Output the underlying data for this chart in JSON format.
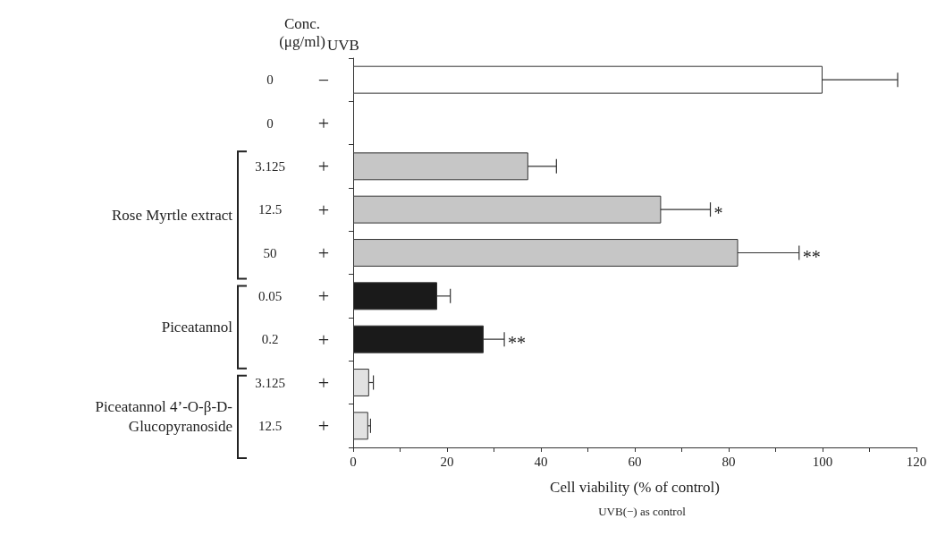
{
  "chart_data": {
    "type": "bar",
    "orientation": "horizontal",
    "xlabel": "Cell viability (% of control)",
    "categories": [
      "0 −",
      "0 +",
      "3.125 +",
      "12.5 +",
      "50 +",
      "0.05 +",
      "0.2 +",
      "3.125 +",
      "12.5 +"
    ],
    "values": [
      100,
      0,
      37.3,
      65.6,
      82,
      17.9,
      27.8,
      3.4,
      3.2
    ],
    "errors": [
      16,
      null,
      6,
      10.5,
      13,
      2.8,
      4.4,
      0.9,
      0.5
    ],
    "colors": [
      "#ffffff",
      "#ffffff",
      "#c6c6c6",
      "#c6c6c6",
      "#c6c6c6",
      "#1a1a1a",
      "#1a1a1a",
      "#e2e2e2",
      "#e2e2e2"
    ],
    "xlim": [
      0,
      120
    ],
    "xticks": [
      0,
      {
        "value": 10,
        "label": null
      },
      20,
      {
        "value": 30,
        "label": null
      },
      40,
      {
        "value": 50,
        "label": null
      },
      60,
      {
        "value": 70,
        "label": null
      },
      80,
      {
        "value": 90,
        "label": null
      },
      100,
      {
        "value": 110,
        "label": null
      },
      120
    ],
    "grid": false,
    "annotations": [
      "Conc.\n(μg/ml)",
      "UVB",
      "Rose Myrtle extract",
      "Piceatannol",
      "Piceatannol 4’-O-β-D-\nGlucopyranoside",
      {
        "text": "*",
        "x": 76.1,
        "y": "12.5 +"
      },
      {
        "text": "**",
        "x": 95,
        "y": "50 +"
      },
      {
        "text": "**",
        "x": 32.2,
        "y": "0.2 +"
      },
      "UVB(−) as control"
    ]
  }
}
